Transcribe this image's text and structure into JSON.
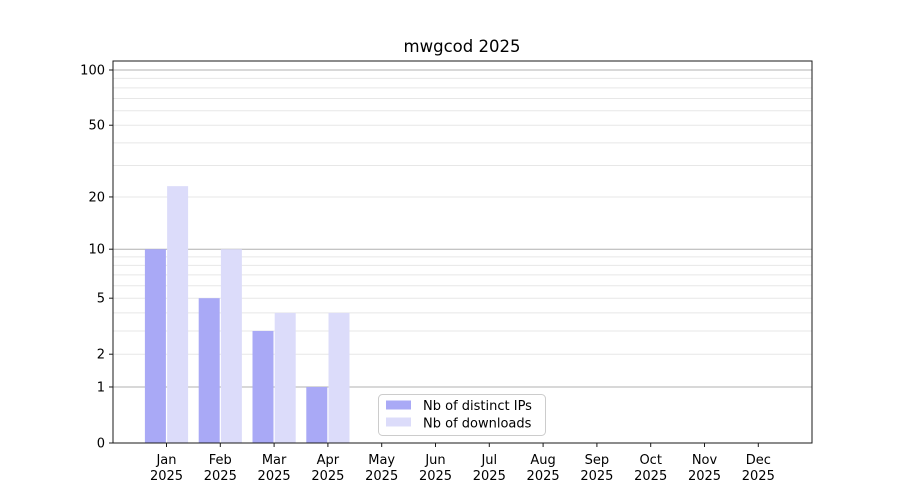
{
  "chart_data": {
    "type": "bar",
    "title": "mwgcod 2025",
    "categories": [
      "Jan",
      "Feb",
      "Mar",
      "Apr",
      "May",
      "Jun",
      "Jul",
      "Aug",
      "Sep",
      "Oct",
      "Nov",
      "Dec"
    ],
    "category_year": "2025",
    "series": [
      {
        "name": "Nb of distinct IPs",
        "color": "#a9a9f6",
        "values": [
          10,
          5,
          3,
          1,
          0,
          0,
          0,
          0,
          0,
          0,
          0,
          0
        ]
      },
      {
        "name": "Nb of downloads",
        "color": "#dcdcfa",
        "values": [
          23,
          10,
          4,
          4,
          0,
          0,
          0,
          0,
          0,
          0,
          0,
          0
        ]
      }
    ],
    "y_axis": {
      "scale": "log10(1+x)",
      "tick_labels": [
        0,
        1,
        2,
        5,
        10,
        20,
        50,
        100
      ],
      "major_gridlines": [
        1,
        10,
        100
      ],
      "minor_gridlines": [
        2,
        3,
        4,
        5,
        6,
        7,
        8,
        9,
        20,
        30,
        40,
        50,
        60,
        70,
        80,
        90
      ],
      "ylim": [
        0,
        112
      ]
    },
    "legend": {
      "position": "lower-right"
    },
    "style": {
      "background": "#ffffff",
      "major_grid_color": "#b0b0b0",
      "minor_grid_color": "#e7e7e7",
      "spine_color": "#1a1a1a",
      "tick_color": "#1a1a1a",
      "text_color": "#000000",
      "legend_border_color": "#cccccc",
      "legend_background": "#ffffff"
    }
  }
}
